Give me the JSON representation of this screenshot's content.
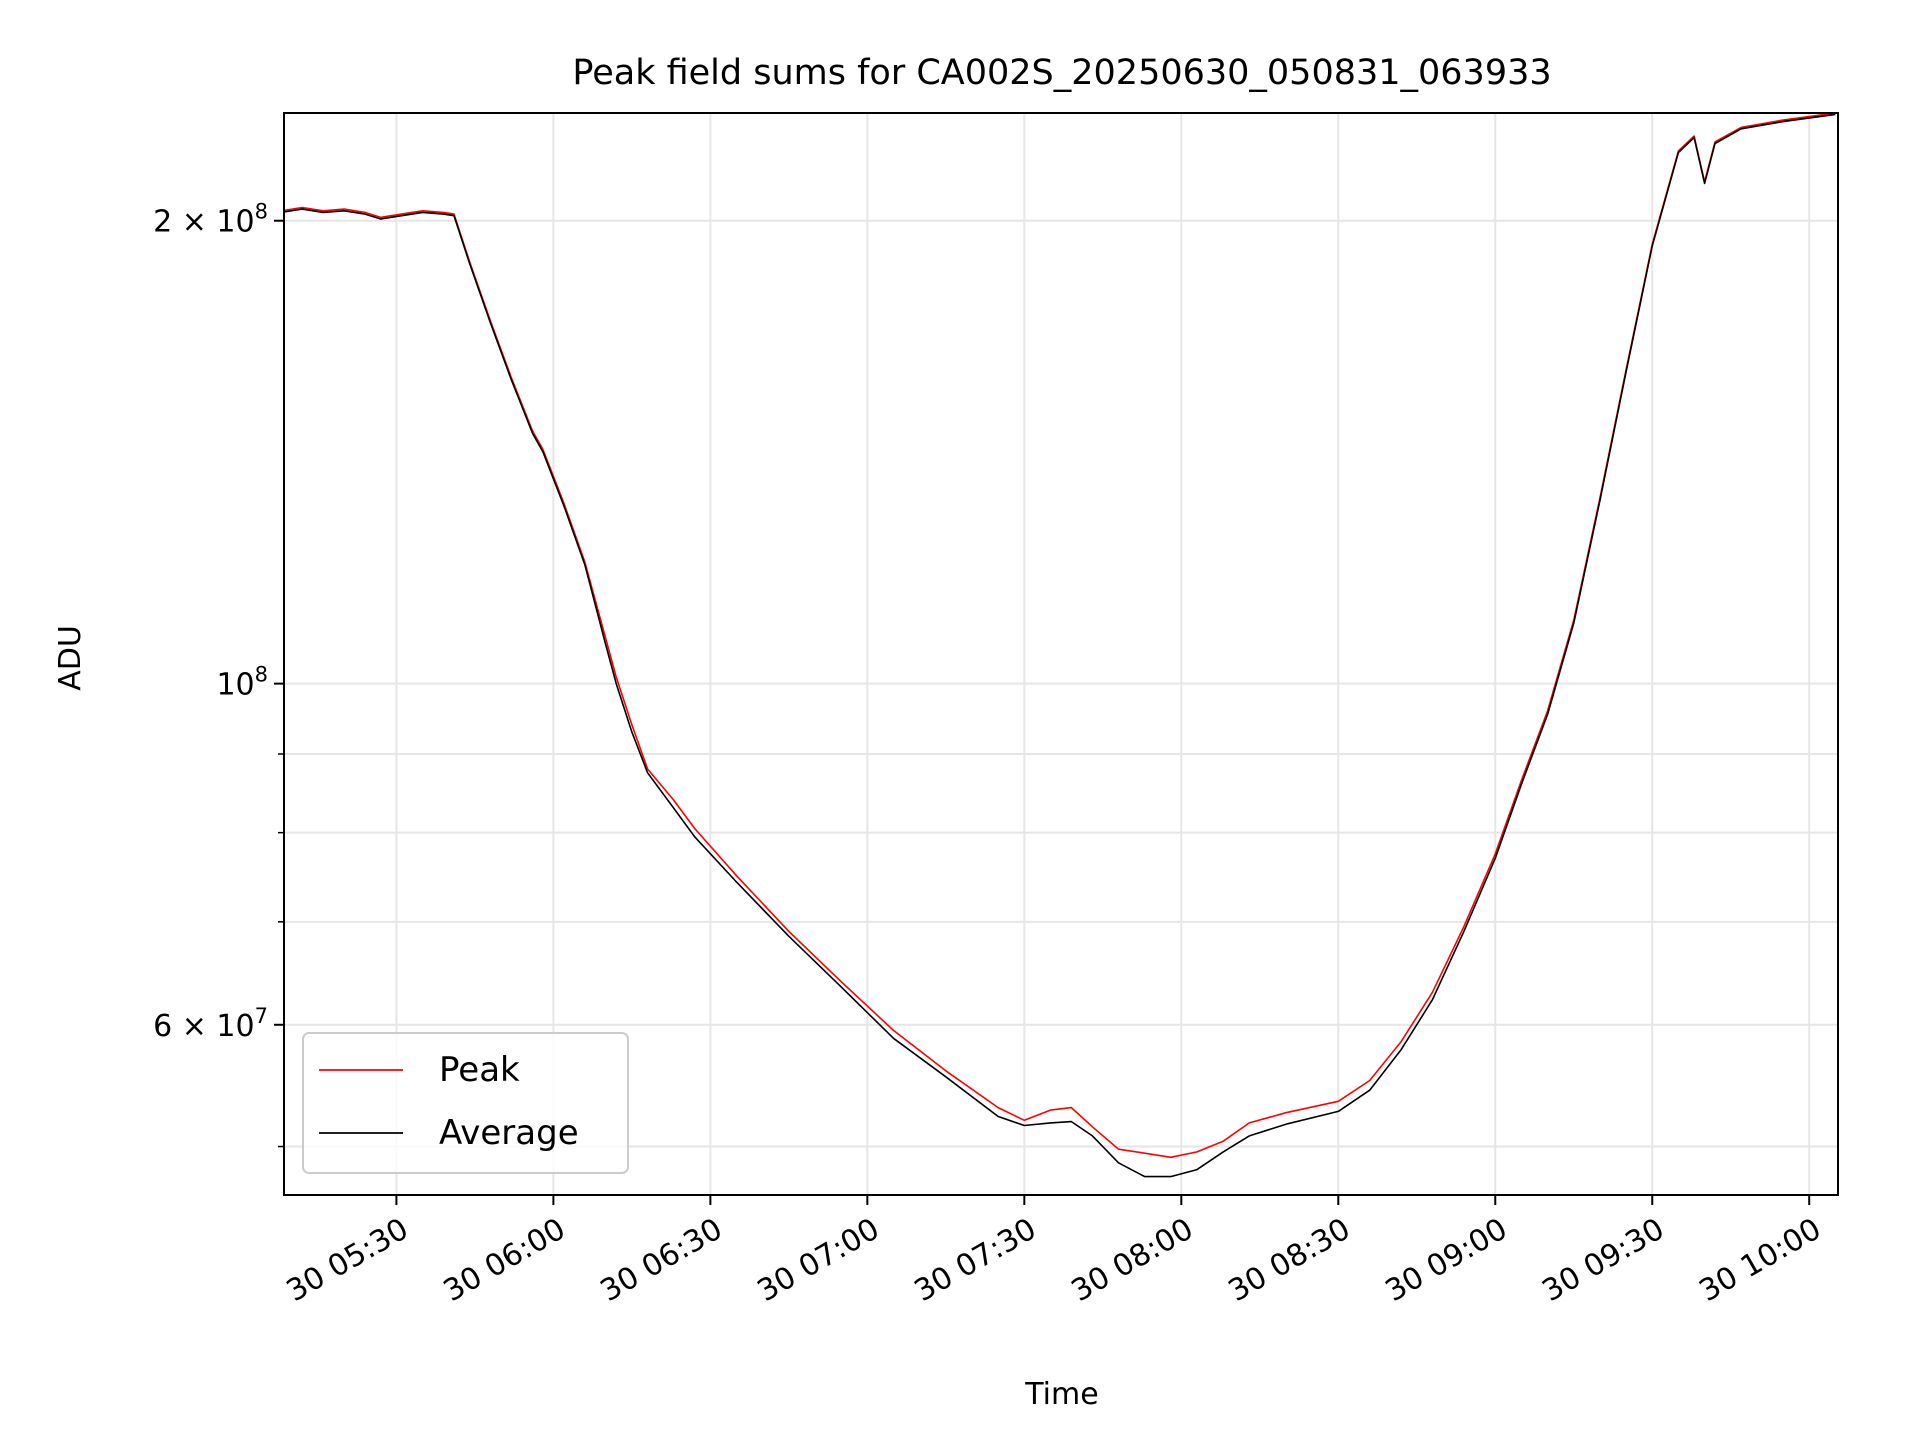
{
  "chart_data": {
    "type": "line",
    "title": "Peak field sums for CA002S_20250630_050831_063933",
    "xlabel": "Time",
    "ylabel": "ADU",
    "x_range": [
      "2025-06-30 05:08:31",
      "2025-06-30 10:05:30"
    ],
    "y_scale": "log",
    "ylim": [
      46500000,
      235000000
    ],
    "grid": true,
    "legend_position": "lower-left",
    "x_ticks": [
      {
        "time": "05:30",
        "label": "30 05:30"
      },
      {
        "time": "06:00",
        "label": "30 06:00"
      },
      {
        "time": "06:30",
        "label": "30 06:30"
      },
      {
        "time": "07:00",
        "label": "30 07:00"
      },
      {
        "time": "07:30",
        "label": "30 07:30"
      },
      {
        "time": "08:00",
        "label": "30 08:00"
      },
      {
        "time": "08:30",
        "label": "30 08:30"
      },
      {
        "time": "09:00",
        "label": "30 09:00"
      },
      {
        "time": "09:30",
        "label": "30 09:30"
      },
      {
        "time": "10:00",
        "label": "30 10:00"
      }
    ],
    "y_major_ticks": [
      {
        "value": 60000000,
        "mantissa": "6 × 10",
        "exp": "7"
      },
      {
        "value": 100000000,
        "mantissa": "10",
        "exp": "8"
      },
      {
        "value": 200000000,
        "mantissa": "2 × 10",
        "exp": "8"
      }
    ],
    "y_minor_ticks": [
      50000000,
      70000000,
      80000000,
      90000000
    ],
    "series": [
      {
        "name": "Peak",
        "color": "#ff0000",
        "points": [
          [
            "05:08",
            203000000
          ],
          [
            "05:12",
            204000000
          ],
          [
            "05:16",
            203000000
          ],
          [
            "05:20",
            203500000
          ],
          [
            "05:24",
            202500000
          ],
          [
            "05:27",
            201000000
          ],
          [
            "05:31",
            202000000
          ],
          [
            "05:35",
            203000000
          ],
          [
            "05:39",
            202500000
          ],
          [
            "05:41",
            202000000
          ],
          [
            "05:44",
            188000000
          ],
          [
            "05:48",
            172000000
          ],
          [
            "05:52",
            158000000
          ],
          [
            "05:56",
            146000000
          ],
          [
            "05:58",
            142000000
          ],
          [
            "06:02",
            131000000
          ],
          [
            "06:06",
            120000000
          ],
          [
            "06:10",
            107000000
          ],
          [
            "06:12",
            101000000
          ],
          [
            "06:15",
            94000000
          ],
          [
            "06:18",
            88000000
          ],
          [
            "06:23",
            84000000
          ],
          [
            "06:27",
            80500000
          ],
          [
            "06:35",
            75000000
          ],
          [
            "06:45",
            69000000
          ],
          [
            "06:55",
            64000000
          ],
          [
            "07:05",
            59500000
          ],
          [
            "07:15",
            56000000
          ],
          [
            "07:25",
            53000000
          ],
          [
            "07:30",
            52000000
          ],
          [
            "07:35",
            52800000
          ],
          [
            "07:39",
            53000000
          ],
          [
            "07:43",
            51500000
          ],
          [
            "07:48",
            49800000
          ],
          [
            "07:53",
            49500000
          ],
          [
            "07:58",
            49200000
          ],
          [
            "08:03",
            49600000
          ],
          [
            "08:08",
            50400000
          ],
          [
            "08:13",
            51800000
          ],
          [
            "08:20",
            52600000
          ],
          [
            "08:30",
            53500000
          ],
          [
            "08:36",
            55200000
          ],
          [
            "08:42",
            58500000
          ],
          [
            "08:48",
            63000000
          ],
          [
            "08:54",
            69500000
          ],
          [
            "09:00",
            77500000
          ],
          [
            "09:05",
            86500000
          ],
          [
            "09:10",
            96000000
          ],
          [
            "09:15",
            110000000
          ],
          [
            "09:20",
            132000000
          ],
          [
            "09:25",
            160000000
          ],
          [
            "09:30",
            193000000
          ],
          [
            "09:35",
            222000000
          ],
          [
            "09:38",
            227000000
          ],
          [
            "09:40",
            212000000
          ],
          [
            "09:42",
            225000000
          ],
          [
            "09:47",
            230000000
          ],
          [
            "09:55",
            232500000
          ],
          [
            "10:05",
            235000000
          ]
        ]
      },
      {
        "name": "Average",
        "color": "#000000",
        "points": [
          [
            "05:08",
            202500000
          ],
          [
            "05:12",
            203500000
          ],
          [
            "05:16",
            202500000
          ],
          [
            "05:20",
            203000000
          ],
          [
            "05:24",
            202000000
          ],
          [
            "05:27",
            200500000
          ],
          [
            "05:31",
            201500000
          ],
          [
            "05:35",
            202500000
          ],
          [
            "05:39",
            202000000
          ],
          [
            "05:41",
            201500000
          ],
          [
            "05:44",
            187500000
          ],
          [
            "05:48",
            171500000
          ],
          [
            "05:52",
            157500000
          ],
          [
            "05:56",
            145500000
          ],
          [
            "05:58",
            141500000
          ],
          [
            "06:02",
            130500000
          ],
          [
            "06:06",
            119500000
          ],
          [
            "06:10",
            106000000
          ],
          [
            "06:12",
            100000000
          ],
          [
            "06:15",
            93000000
          ],
          [
            "06:18",
            87500000
          ],
          [
            "06:23",
            83000000
          ],
          [
            "06:27",
            79500000
          ],
          [
            "06:35",
            74300000
          ],
          [
            "06:45",
            68500000
          ],
          [
            "06:55",
            63500000
          ],
          [
            "07:05",
            58800000
          ],
          [
            "07:15",
            55500000
          ],
          [
            "07:25",
            52300000
          ],
          [
            "07:30",
            51600000
          ],
          [
            "07:35",
            51800000
          ],
          [
            "07:39",
            51900000
          ],
          [
            "07:43",
            50800000
          ],
          [
            "07:48",
            48800000
          ],
          [
            "07:53",
            47800000
          ],
          [
            "07:58",
            47800000
          ],
          [
            "08:03",
            48300000
          ],
          [
            "08:08",
            49600000
          ],
          [
            "08:13",
            50800000
          ],
          [
            "08:20",
            51700000
          ],
          [
            "08:30",
            52700000
          ],
          [
            "08:36",
            54400000
          ],
          [
            "08:42",
            57800000
          ],
          [
            "08:48",
            62300000
          ],
          [
            "08:54",
            69000000
          ],
          [
            "09:00",
            77000000
          ],
          [
            "09:05",
            86000000
          ],
          [
            "09:10",
            95500000
          ],
          [
            "09:15",
            109500000
          ],
          [
            "09:20",
            131500000
          ],
          [
            "09:25",
            159500000
          ],
          [
            "09:30",
            192500000
          ],
          [
            "09:35",
            221500000
          ],
          [
            "09:38",
            226500000
          ],
          [
            "09:40",
            211500000
          ],
          [
            "09:42",
            224500000
          ],
          [
            "09:47",
            229500000
          ],
          [
            "09:55",
            232000000
          ],
          [
            "10:05",
            234500000
          ]
        ]
      }
    ]
  }
}
